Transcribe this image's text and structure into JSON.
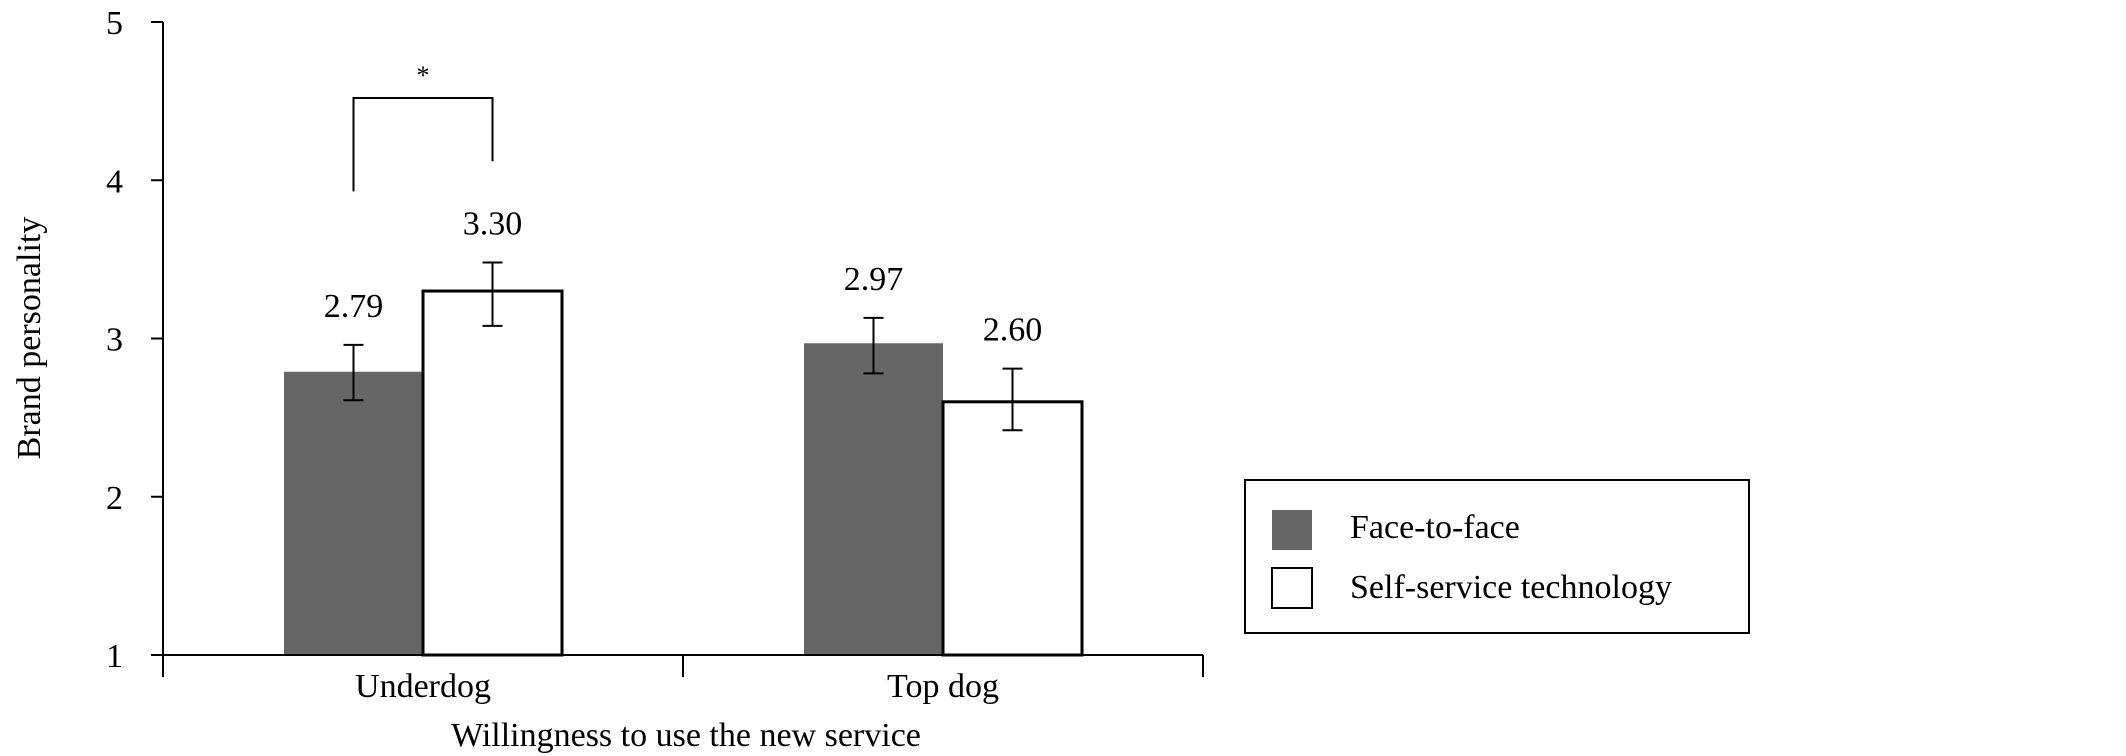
{
  "chart_data": {
    "type": "bar",
    "categories": [
      "Underdog",
      "Top dog"
    ],
    "series": [
      {
        "name": "Face-to-face",
        "values": [
          2.79,
          2.97
        ],
        "error_low": [
          2.61,
          2.78
        ],
        "error_high": [
          2.96,
          3.13
        ],
        "labels": [
          "2.79",
          "2.97"
        ],
        "color": "#666666"
      },
      {
        "name": "Self-service technology",
        "values": [
          3.3,
          2.6
        ],
        "error_low": [
          3.08,
          2.42
        ],
        "error_high": [
          3.48,
          2.81
        ],
        "labels": [
          "3.30",
          "2.60"
        ],
        "color": "#ffffff"
      }
    ],
    "xlabel": "Willingness to use the new service",
    "ylabel": "Brand personality",
    "ylim": [
      1,
      5
    ],
    "yticks": [
      "1",
      "2",
      "3",
      "4",
      "5"
    ],
    "annotation": {
      "text": "*",
      "category": "Underdog"
    },
    "legend_position": "right",
    "grid": false
  }
}
